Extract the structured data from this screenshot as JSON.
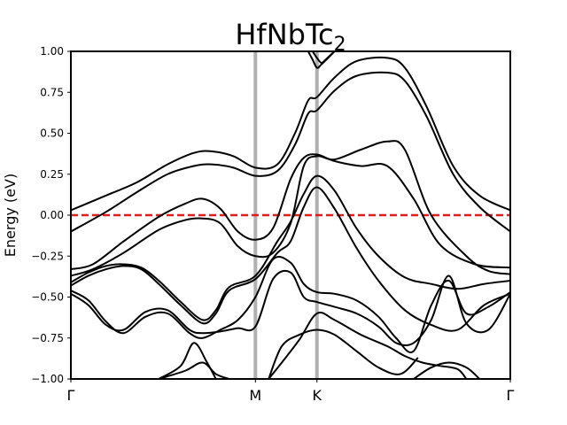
{
  "chart_data": {
    "type": "line",
    "title": "HfNbTc",
    "title_subscript": "2",
    "ylabel": "Energy (eV)",
    "xlabel": "",
    "ylim": [
      -1.0,
      1.0
    ],
    "yticks": [
      "1.00",
      "0.75",
      "0.50",
      "0.25",
      "0.00",
      "−0.25",
      "−0.50",
      "−0.75",
      "−1.00"
    ],
    "ytick_values": [
      1.0,
      0.75,
      0.5,
      0.25,
      0.0,
      -0.25,
      -0.5,
      -0.75,
      -1.0
    ],
    "kpoints": [
      {
        "label": "Γ",
        "x": 0.0
      },
      {
        "label": "M",
        "x": 0.42
      },
      {
        "label": "K",
        "x": 0.56
      },
      {
        "label": "Γ",
        "x": 1.0
      }
    ],
    "grid": false,
    "fermi_level": {
      "energy": 0.0,
      "color": "#e41a1c",
      "style": "dashed"
    },
    "kpoint_line_color": "#b0b0b0",
    "band_color": "#000000",
    "bands": [
      {
        "x": [
          0,
          0.08,
          0.15,
          0.22,
          0.28,
          0.32,
          0.37,
          0.42,
          0.47,
          0.51,
          0.54,
          0.56,
          0.6,
          0.65,
          0.72,
          0.76,
          0.81,
          0.87,
          0.93,
          1.0
        ],
        "y": [
          -0.1,
          0.02,
          0.14,
          0.25,
          0.3,
          0.31,
          0.29,
          0.24,
          0.27,
          0.43,
          0.62,
          0.64,
          0.76,
          0.85,
          0.87,
          0.82,
          0.6,
          0.25,
          0.05,
          -0.1
        ]
      },
      {
        "x": [
          0,
          0.08,
          0.15,
          0.22,
          0.28,
          0.32,
          0.37,
          0.42,
          0.47,
          0.51,
          0.54,
          0.56,
          0.6,
          0.65,
          0.72,
          0.76,
          0.81,
          0.87,
          0.93,
          1.0
        ],
        "y": [
          0.03,
          0.12,
          0.2,
          0.31,
          0.38,
          0.39,
          0.36,
          0.29,
          0.31,
          0.5,
          0.7,
          0.72,
          0.84,
          0.94,
          0.96,
          0.9,
          0.66,
          0.3,
          0.12,
          0.03
        ]
      },
      {
        "x": [
          0,
          0.05,
          0.12,
          0.2,
          0.26,
          0.3,
          0.34,
          0.38,
          0.42,
          0.46,
          0.5,
          0.53,
          0.56,
          0.6,
          0.66,
          0.72,
          0.78,
          0.84,
          0.92,
          1.0
        ],
        "y": [
          -0.33,
          -0.3,
          -0.16,
          -0.01,
          0.07,
          0.1,
          0.04,
          -0.1,
          -0.15,
          -0.08,
          0.22,
          0.35,
          0.37,
          0.33,
          0.3,
          0.3,
          0.1,
          -0.18,
          -0.3,
          -0.32
        ]
      },
      {
        "x": [
          0,
          0.05,
          0.12,
          0.2,
          0.26,
          0.3,
          0.34,
          0.38,
          0.42,
          0.46,
          0.5,
          0.53,
          0.56,
          0.6,
          0.66,
          0.72,
          0.76,
          0.82,
          0.9,
          0.95,
          1.0
        ],
        "y": [
          -0.37,
          -0.33,
          -0.23,
          -0.09,
          -0.03,
          -0.02,
          -0.05,
          -0.19,
          -0.25,
          -0.23,
          -0.05,
          0.3,
          0.36,
          0.34,
          0.4,
          0.45,
          0.4,
          0.0,
          -0.25,
          -0.34,
          -0.36
        ]
      },
      {
        "x": [
          0,
          0.04,
          0.08,
          0.12,
          0.16,
          0.2,
          0.25,
          0.3,
          0.33,
          0.36,
          0.42,
          0.47,
          0.5,
          0.53,
          0.56,
          0.6,
          0.65,
          0.7,
          0.76,
          0.82,
          0.88,
          0.94,
          1.0
        ],
        "y": [
          -0.41,
          -0.35,
          -0.31,
          -0.3,
          -0.32,
          -0.4,
          -0.53,
          -0.64,
          -0.58,
          -0.44,
          -0.37,
          -0.16,
          -0.04,
          0.13,
          0.24,
          0.15,
          -0.08,
          -0.25,
          -0.38,
          -0.42,
          -0.45,
          -0.42,
          -0.4
        ]
      },
      {
        "x": [
          0,
          0.04,
          0.08,
          0.12,
          0.16,
          0.2,
          0.25,
          0.3,
          0.33,
          0.36,
          0.42,
          0.47,
          0.5,
          0.53,
          0.56,
          0.6,
          0.65,
          0.7,
          0.76,
          0.82,
          0.88,
          0.94,
          1.0
        ],
        "y": [
          -0.43,
          -0.37,
          -0.33,
          -0.31,
          -0.33,
          -0.42,
          -0.55,
          -0.66,
          -0.6,
          -0.46,
          -0.39,
          -0.23,
          -0.16,
          0.05,
          0.17,
          0.04,
          -0.2,
          -0.4,
          -0.58,
          -0.67,
          -0.7,
          -0.55,
          -0.48
        ]
      },
      {
        "x": [
          0,
          0.04,
          0.08,
          0.12,
          0.17,
          0.22,
          0.27,
          0.3,
          0.34,
          0.38,
          0.42,
          0.46,
          0.5,
          0.53,
          0.56,
          0.6,
          0.65,
          0.7,
          0.74,
          0.78,
          0.82,
          0.86,
          0.9,
          0.95,
          1.0
        ],
        "y": [
          -0.46,
          -0.52,
          -0.65,
          -0.72,
          -0.62,
          -0.6,
          -0.72,
          -0.75,
          -0.7,
          -0.64,
          -0.5,
          -0.27,
          -0.29,
          -0.42,
          -0.47,
          -0.48,
          -0.52,
          -0.62,
          -0.75,
          -0.83,
          -0.55,
          -0.4,
          -0.6,
          -0.56,
          -0.47
        ]
      },
      {
        "x": [
          0,
          0.04,
          0.08,
          0.12,
          0.17,
          0.22,
          0.27,
          0.3,
          0.34,
          0.38,
          0.42,
          0.46,
          0.5,
          0.53,
          0.56,
          0.6,
          0.65,
          0.7,
          0.74,
          0.78,
          0.82,
          0.86,
          0.9,
          0.95,
          1.0
        ],
        "y": [
          -0.48,
          -0.55,
          -0.67,
          -0.7,
          -0.59,
          -0.58,
          -0.7,
          -0.72,
          -0.71,
          -0.69,
          -0.68,
          -0.39,
          -0.35,
          -0.5,
          -0.53,
          -0.56,
          -0.6,
          -0.68,
          -0.78,
          -0.78,
          -0.64,
          -0.37,
          -0.66,
          -0.7,
          -0.48
        ]
      },
      {
        "x": [
          0.2,
          0.25,
          0.28,
          0.31,
          0.33
        ],
        "y": [
          -1.0,
          -0.92,
          -0.78,
          -0.9,
          -1.0
        ]
      },
      {
        "x": [
          0.2,
          0.26,
          0.3,
          0.33,
          0.36
        ],
        "y": [
          -1.0,
          -0.95,
          -0.9,
          -0.97,
          -1.0
        ]
      },
      {
        "x": [
          0.45,
          0.48,
          0.52,
          0.56,
          0.6,
          0.65,
          0.7,
          0.75,
          0.79
        ],
        "y": [
          -1.0,
          -0.8,
          -0.73,
          -0.7,
          -0.73,
          -0.83,
          -0.93,
          -0.97,
          -0.87
        ]
      },
      {
        "x": [
          0.45,
          0.48,
          0.52,
          0.56,
          0.6,
          0.66,
          0.72,
          0.76,
          0.8,
          0.84,
          0.88,
          0.9
        ],
        "y": [
          -1.0,
          -0.9,
          -0.76,
          -0.6,
          -0.64,
          -0.73,
          -0.8,
          -0.86,
          -0.9,
          -0.92,
          -0.94,
          -1.0
        ]
      },
      {
        "x": [
          0.78,
          0.82,
          0.86,
          0.9,
          0.93
        ],
        "y": [
          -1.0,
          -0.93,
          -0.9,
          -0.93,
          -1.0
        ]
      },
      {
        "x": [
          0.54,
          0.55,
          0.56,
          0.57,
          0.6
        ],
        "y": [
          1.0,
          0.95,
          0.9,
          0.92,
          1.0
        ]
      },
      {
        "x": [
          0.55,
          0.56,
          0.57,
          0.58,
          0.6
        ],
        "y": [
          1.0,
          0.96,
          0.93,
          0.95,
          1.0
        ]
      }
    ]
  }
}
